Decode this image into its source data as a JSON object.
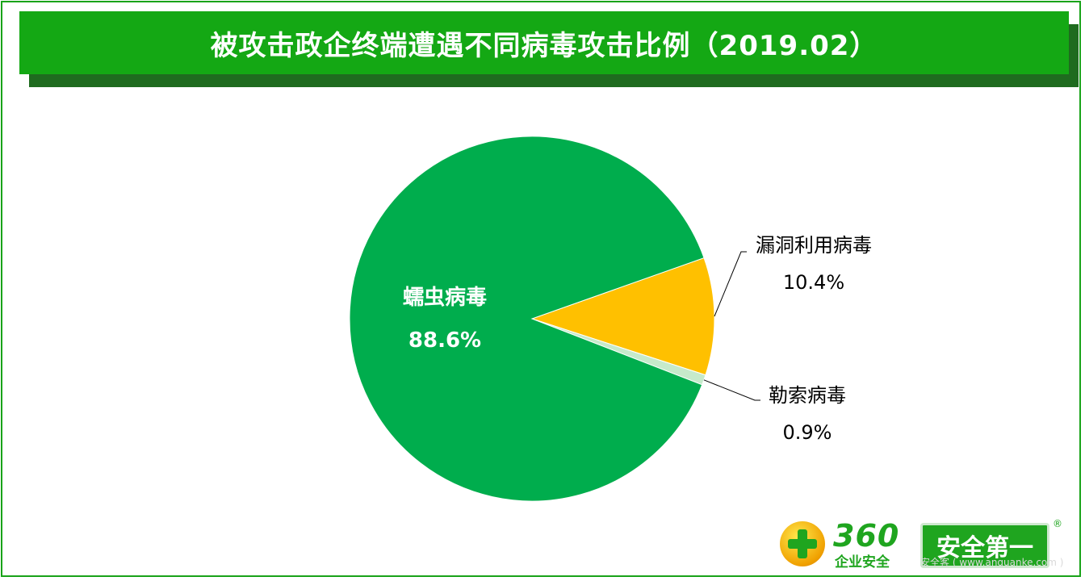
{
  "title": "被攻击政企终端遭遇不同病毒攻击比例（2019.02）",
  "chart_data": {
    "type": "pie",
    "categories": [
      "蠕虫病毒",
      "漏洞利用病毒",
      "勒索病毒"
    ],
    "values": [
      88.6,
      10.4,
      0.9
    ],
    "value_labels": [
      "88.6%",
      "10.4%",
      "0.9%"
    ],
    "colors": [
      "#00ad4d",
      "#ffc000",
      "#c6eacb"
    ],
    "legend": "none"
  },
  "logo": {
    "brand": "360",
    "subtitle": "企业安全",
    "slogan": "安全第一",
    "registered": "®"
  },
  "watermark": "安全客 ( www.anquanke.com )"
}
